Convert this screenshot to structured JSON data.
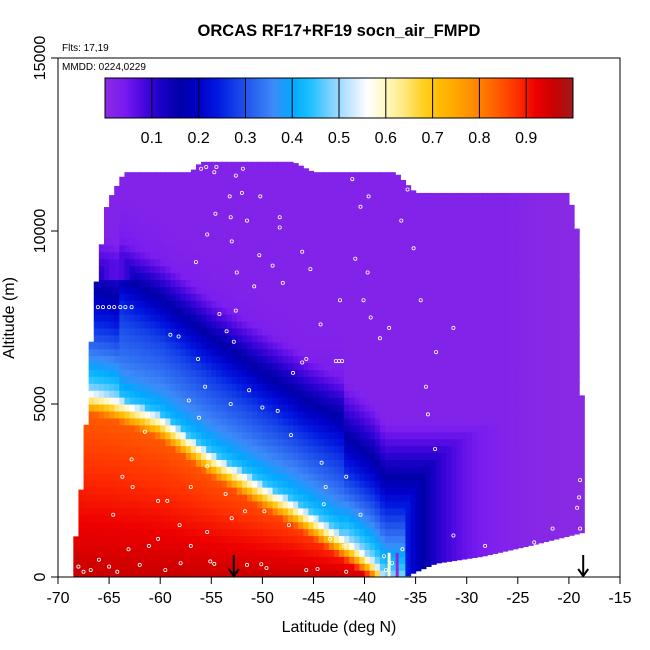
{
  "chart_data": {
    "type": "heatmap",
    "title": "ORCAS RF17+RF19 socn_air_FMPD",
    "annotations": {
      "flights": "Flts: 17,19",
      "dates": "MMDD: 0224,0229"
    },
    "xlabel": "Latitude (deg N)",
    "ylabel": "Altitude (m)",
    "xlim": [
      -70,
      -15
    ],
    "ylim": [
      0,
      15000
    ],
    "x_ticks": [
      -70,
      -65,
      -60,
      -55,
      -50,
      -45,
      -40,
      -35,
      -30,
      -25,
      -20,
      -15
    ],
    "y_ticks": [
      0,
      5000,
      10000,
      15000
    ],
    "grid": false,
    "colorbar": {
      "placement": "top inset",
      "range": [
        0,
        1
      ],
      "ticks": [
        0.1,
        0.2,
        0.3,
        0.4,
        0.5,
        0.6,
        0.7,
        0.8,
        0.9
      ],
      "colors": [
        "#8a2be2",
        "#7a1cf0",
        "#4b08e0",
        "#1a00c8",
        "#0000a8",
        "#0000c8",
        "#0018e0",
        "#1440e8",
        "#2a64f0",
        "#3e8af8",
        "#00a8ff",
        "#20c0ff",
        "#7ad0ff",
        "#bfe4ff",
        "#ffffff",
        "#fff8c0",
        "#ffe880",
        "#ffd020",
        "#ffb800",
        "#ffa000",
        "#ff8000",
        "#ff5a00",
        "#ff3000",
        "#ee0000",
        "#c80000",
        "#a01a1a"
      ]
    },
    "surface_model": {
      "x_range": [
        -68.5,
        -18.5
      ],
      "top_altitude_by_latitude": [
        [
          -68.5,
          500
        ],
        [
          -67.5,
          3200
        ],
        [
          -66.5,
          8000
        ],
        [
          -65.2,
          10800
        ],
        [
          -63.5,
          11700
        ],
        [
          -57,
          11700
        ],
        [
          -56,
          12000
        ],
        [
          -47,
          12000
        ],
        [
          -45,
          11700
        ],
        [
          -37,
          11700
        ],
        [
          -35,
          11100
        ],
        [
          -20,
          11100
        ],
        [
          -19.2,
          10000
        ],
        [
          -19,
          8000
        ],
        [
          -18.8,
          6000
        ],
        [
          -18.6,
          3000
        ],
        [
          -18.5,
          2000
        ]
      ],
      "bottom_altitude_by_latitude": [
        [
          -68.5,
          0
        ],
        [
          -36,
          0
        ],
        [
          -35,
          150
        ],
        [
          -33,
          400
        ],
        [
          -28.5,
          600
        ],
        [
          -24,
          900
        ],
        [
          -18.5,
          1300
        ]
      ],
      "transition_curve": [
        [
          -68,
          5500
        ],
        [
          -65,
          5300
        ],
        [
          -60,
          4700
        ],
        [
          -55,
          3600
        ],
        [
          -50,
          2700
        ],
        [
          -47,
          2200
        ],
        [
          -44,
          1600
        ],
        [
          -41,
          1000
        ],
        [
          -39,
          500
        ],
        [
          -38,
          0
        ]
      ],
      "profile": {
        "below_transition": 0.82,
        "near_surface_max": 0.96,
        "transition_mid": 0.5,
        "upper_min": 0.02
      },
      "tongue": {
        "lat_start": -64,
        "lat_end": -46,
        "alt_start": 7000,
        "alt_end": 3200,
        "half_width_m": 2000,
        "value": 0.34,
        "weight": 0.55
      }
    },
    "observations": [
      [
        -66.7,
        7800
      ],
      [
        -66.1,
        7800
      ],
      [
        -65.6,
        7800
      ],
      [
        -65.0,
        7800
      ],
      [
        -64.5,
        7800
      ],
      [
        -63.9,
        7800
      ],
      [
        -63.4,
        7800
      ],
      [
        -62.8,
        7800
      ],
      [
        -59.0,
        7000
      ],
      [
        -58.2,
        6950
      ],
      [
        -54.2,
        7600
      ],
      [
        -53.5,
        7100
      ],
      [
        -52.8,
        6800
      ],
      [
        -52.6,
        7700
      ],
      [
        -46.1,
        6200
      ],
      [
        -45.7,
        6300
      ],
      [
        -47.0,
        5900
      ],
      [
        -44.3,
        7300
      ],
      [
        -42.4,
        8000
      ],
      [
        -42.8,
        6240
      ],
      [
        -42.5,
        6240
      ],
      [
        -42.2,
        6240
      ],
      [
        -48.3,
        10400
      ],
      [
        -48.3,
        10100
      ],
      [
        -49.0,
        9000
      ],
      [
        -48.0,
        8500
      ],
      [
        -46.1,
        9400
      ],
      [
        -45.3,
        8900
      ],
      [
        -53.2,
        11000
      ],
      [
        -52.0,
        11100
      ],
      [
        -51.5,
        10300
      ],
      [
        -53.0,
        9700
      ],
      [
        -52.5,
        8800
      ],
      [
        -50.3,
        9300
      ],
      [
        -50.8,
        8400
      ],
      [
        -55.4,
        9900
      ],
      [
        -56.5,
        9100
      ],
      [
        -54.7,
        11700
      ],
      [
        -52.6,
        11600
      ],
      [
        -51.9,
        11800
      ],
      [
        -56.0,
        11800
      ],
      [
        -55.5,
        11850
      ],
      [
        -54.5,
        11850
      ],
      [
        -50.2,
        11000
      ],
      [
        -54.6,
        10500
      ],
      [
        -53.1,
        10400
      ],
      [
        -41.2,
        11500
      ],
      [
        -40.4,
        10700
      ],
      [
        -39.6,
        11000
      ],
      [
        -40.9,
        9200
      ],
      [
        -39.7,
        8800
      ],
      [
        -40.1,
        8000
      ],
      [
        -39.4,
        7500
      ],
      [
        -38.5,
        6900
      ],
      [
        -37.6,
        7200
      ],
      [
        -35.8,
        11200
      ],
      [
        -36.4,
        10300
      ],
      [
        -35.2,
        9500
      ],
      [
        -34.5,
        8000
      ],
      [
        -31.3,
        7200
      ],
      [
        -33.0,
        6500
      ],
      [
        -34.0,
        5500
      ],
      [
        -33.8,
        4700
      ],
      [
        -33.1,
        3700
      ],
      [
        -56.3,
        6300
      ],
      [
        -55.6,
        5500
      ],
      [
        -57.2,
        5100
      ],
      [
        -56.2,
        4600
      ],
      [
        -53.1,
        5000
      ],
      [
        -51.3,
        5400
      ],
      [
        -50.0,
        4900
      ],
      [
        -48.5,
        4800
      ],
      [
        -47.2,
        4100
      ],
      [
        -44.2,
        3300
      ],
      [
        -43.8,
        2600
      ],
      [
        -41.8,
        2900
      ],
      [
        -61.5,
        4200
      ],
      [
        -62.8,
        3400
      ],
      [
        -62.7,
        2600
      ],
      [
        -60.2,
        2200
      ],
      [
        -63.7,
        2900
      ],
      [
        -64.6,
        1800
      ],
      [
        -59.3,
        2200
      ],
      [
        -57.0,
        2600
      ],
      [
        -55.4,
        3200
      ],
      [
        -53.6,
        2400
      ],
      [
        -58.1,
        1500
      ],
      [
        -55.4,
        1300
      ],
      [
        -53.0,
        1700
      ],
      [
        -51.7,
        1900
      ],
      [
        -49.8,
        1900
      ],
      [
        -46.2,
        1900
      ],
      [
        -47.4,
        1500
      ],
      [
        -45.0,
        1700
      ],
      [
        -44.0,
        2100
      ],
      [
        -43.4,
        1100
      ],
      [
        -42.0,
        900
      ],
      [
        -40.4,
        1800
      ],
      [
        -38.1,
        600
      ],
      [
        -37.3,
        400
      ],
      [
        -37.9,
        200
      ],
      [
        -36.3,
        800
      ],
      [
        -31.3,
        1200
      ],
      [
        -28.2,
        900
      ],
      [
        -23.4,
        1000
      ],
      [
        -21.6,
        1400
      ],
      [
        -19.2,
        2000
      ],
      [
        -19.0,
        2300
      ],
      [
        -18.9,
        2800
      ],
      [
        -18.9,
        1400
      ],
      [
        -61.1,
        900
      ],
      [
        -60.2,
        1100
      ],
      [
        -57.0,
        900
      ],
      [
        -55.1,
        450
      ],
      [
        -54.7,
        380
      ],
      [
        -51.5,
        350
      ],
      [
        -49.6,
        260
      ],
      [
        -50.1,
        370
      ],
      [
        -45.7,
        200
      ],
      [
        -44.6,
        230
      ],
      [
        -41.8,
        150
      ],
      [
        -65.0,
        300
      ],
      [
        -64.2,
        150
      ],
      [
        -63.1,
        800
      ],
      [
        -66.8,
        200
      ],
      [
        -67.5,
        150
      ],
      [
        -68.0,
        300
      ],
      [
        -66.0,
        500
      ],
      [
        -62.0,
        350
      ],
      [
        -59.5,
        200
      ],
      [
        -58.0,
        400
      ]
    ],
    "flight_markers": [
      {
        "latitude": -52.8,
        "altitude": 0
      },
      {
        "latitude": -18.6,
        "altitude": 0
      }
    ],
    "runway_marks": [
      {
        "latitude": -68.1,
        "value": 0.97
      },
      {
        "latitude": -37.6,
        "value": 0.6
      },
      {
        "latitude": -36.8,
        "value": 0.0
      }
    ]
  }
}
